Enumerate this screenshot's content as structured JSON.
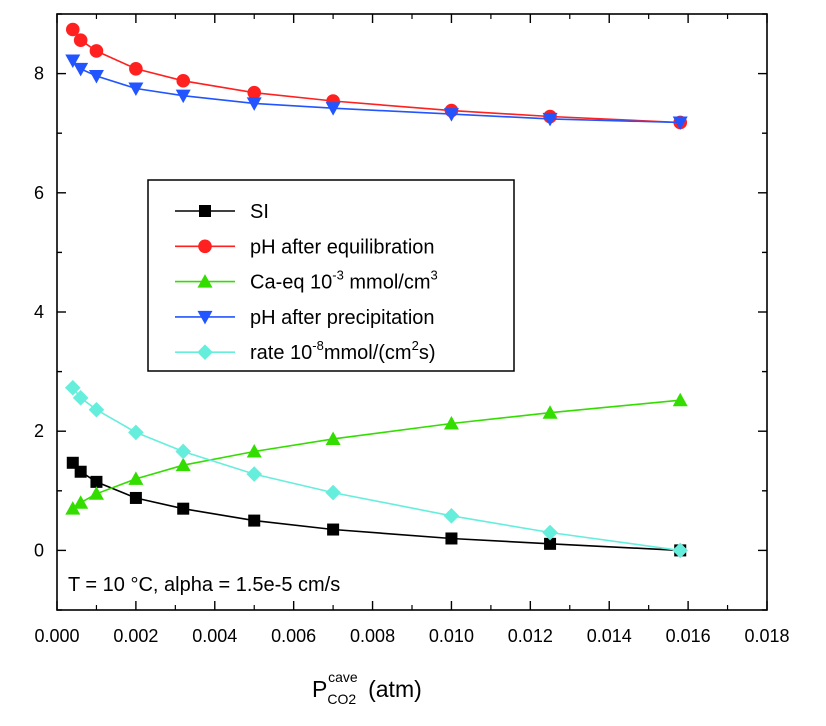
{
  "chart_data": {
    "type": "line",
    "xlabel": {
      "main": "P",
      "sub": "CO2",
      "sup": "cave",
      "unit": " (atm)"
    },
    "ylabel": "",
    "xlim": [
      0.0,
      0.018
    ],
    "ylim": [
      -1,
      9
    ],
    "xticks": [
      "0.000",
      "0.002",
      "0.004",
      "0.006",
      "0.008",
      "0.010",
      "0.012",
      "0.014",
      "0.016",
      "0.018"
    ],
    "yticks": [
      "0",
      "2",
      "4",
      "6",
      "8"
    ],
    "x": [
      0.0004,
      0.0006,
      0.001,
      0.002,
      0.0032,
      0.005,
      0.007,
      0.01,
      0.0125,
      0.0158
    ],
    "series": [
      {
        "name": "SI",
        "color": "#000000",
        "marker": "square",
        "values": [
          1.47,
          1.32,
          1.15,
          0.88,
          0.7,
          0.5,
          0.35,
          0.2,
          0.11,
          0.0
        ]
      },
      {
        "name": "pH after equilibration",
        "color": "#ff2020",
        "marker": "circle",
        "values": [
          8.74,
          8.56,
          8.38,
          8.08,
          7.88,
          7.68,
          7.54,
          7.38,
          7.28,
          7.18
        ]
      },
      {
        "name": "Ca-eq",
        "color": "#33dd00",
        "marker": "triangle-up",
        "values": [
          0.7,
          0.8,
          0.95,
          1.2,
          1.43,
          1.66,
          1.87,
          2.13,
          2.31,
          2.52
        ]
      },
      {
        "name": "pH after precipitation",
        "color": "#2255ff",
        "marker": "triangle-down",
        "values": [
          8.22,
          8.08,
          7.96,
          7.75,
          7.63,
          7.5,
          7.42,
          7.32,
          7.24,
          7.18
        ]
      },
      {
        "name": "rate",
        "color": "#66eedd",
        "marker": "diamond",
        "values": [
          2.73,
          2.56,
          2.36,
          1.98,
          1.66,
          1.28,
          0.97,
          0.58,
          0.3,
          0.0
        ]
      }
    ],
    "legend": {
      "entries": [
        {
          "text": "SI"
        },
        {
          "text": "pH after equilibration"
        },
        {
          "text": "Ca-eq 10",
          "sup": "-3",
          "tail": " mmol/cm",
          "sup2": "3"
        },
        {
          "text": "pH after precipitation"
        },
        {
          "text": "rate  10",
          "sup": "-8",
          "tail": "mmol/(cm",
          "sup2": "2",
          "tail2": "s)"
        }
      ]
    },
    "annotation": "T = 10 °C, alpha = 1.5e-5 cm/s",
    "grid": false
  }
}
